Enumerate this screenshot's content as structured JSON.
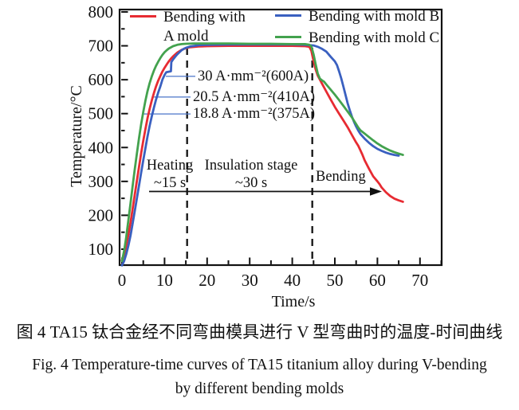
{
  "figure": {
    "caption_cn": "图 4  TA15 钛合金经不同弯曲模具进行 V 型弯曲时的温度-时间曲线",
    "caption_en_line1": "Fig. 4  Temperature-time curves of TA15 titanium alloy during V-bending",
    "caption_en_line2": "by different bending molds"
  },
  "chart_data": {
    "type": "line",
    "title": "",
    "xlabel": "Time/s",
    "ylabel": "Temperature/°C",
    "xlim": [
      0,
      75
    ],
    "ylim": [
      50,
      810
    ],
    "xticks": [
      0,
      10,
      20,
      30,
      40,
      50,
      60,
      70
    ],
    "yticks": [
      100,
      200,
      300,
      400,
      500,
      600,
      700,
      800
    ],
    "grid": false,
    "legend_position": "top-inside",
    "legend": [
      {
        "label_line1": "Bending with",
        "label_line2": "A mold",
        "color": "#e72b32"
      },
      {
        "label": "Bending with mold B",
        "color": "#3a60c0"
      },
      {
        "label": "Bending with mold C",
        "color": "#43a24e"
      }
    ],
    "dashed_lines_t": [
      15.3,
      44.7
    ],
    "leader_color": "#4a74c8",
    "stages": [
      {
        "line1": "Heating",
        "line2": "~15 s"
      },
      {
        "line1": "Insulation stage",
        "line2": "~30 s"
      },
      {
        "line1": "Bending"
      }
    ],
    "annotations": [
      {
        "label": "30 A·mm⁻²(600A)",
        "anchor_t": 10.3,
        "anchor_temp": 610
      },
      {
        "label": "20.5 A·mm⁻²(410A)",
        "anchor_t": 7.5,
        "anchor_temp": 549
      },
      {
        "label": "18.8 A·mm⁻²(375A)",
        "anchor_t": 4.9,
        "anchor_temp": 499
      }
    ],
    "series": [
      {
        "name": "Bending with A mold",
        "color": "#e72b32",
        "points": [
          [
            0,
            68
          ],
          [
            0.5,
            85
          ],
          [
            1,
            110
          ],
          [
            1.5,
            142
          ],
          [
            2,
            178
          ],
          [
            2.5,
            218
          ],
          [
            3,
            260
          ],
          [
            3.5,
            302
          ],
          [
            4,
            343
          ],
          [
            4.5,
            382
          ],
          [
            5,
            420
          ],
          [
            5.5,
            454
          ],
          [
            6,
            486
          ],
          [
            6.5,
            514
          ],
          [
            7,
            539
          ],
          [
            7.5,
            561
          ],
          [
            8,
            580
          ],
          [
            8.5,
            597
          ],
          [
            9,
            611
          ],
          [
            9.5,
            624
          ],
          [
            10,
            635
          ],
          [
            10.5,
            645
          ],
          [
            11,
            654
          ],
          [
            11.5,
            662
          ],
          [
            12,
            669
          ],
          [
            13,
            680
          ],
          [
            14,
            688
          ],
          [
            15,
            693
          ],
          [
            16,
            696
          ],
          [
            18,
            698
          ],
          [
            20,
            699
          ],
          [
            25,
            700
          ],
          [
            30,
            700
          ],
          [
            35,
            700
          ],
          [
            40,
            700
          ],
          [
            43,
            699
          ],
          [
            44,
            697
          ],
          [
            44.5,
            685
          ],
          [
            45,
            655
          ],
          [
            45.5,
            630
          ],
          [
            46,
            612
          ],
          [
            46.5,
            600
          ],
          [
            47,
            588
          ],
          [
            48,
            565
          ],
          [
            49,
            542
          ],
          [
            50,
            520
          ],
          [
            51,
            500
          ],
          [
            52,
            480
          ],
          [
            53,
            460
          ],
          [
            54,
            437
          ],
          [
            55,
            415
          ],
          [
            55.5,
            405
          ],
          [
            56,
            392
          ],
          [
            56.5,
            378
          ],
          [
            57,
            362
          ],
          [
            58,
            338
          ],
          [
            59,
            315
          ],
          [
            60,
            300
          ],
          [
            60.5,
            292
          ],
          [
            61,
            282
          ],
          [
            62,
            268
          ],
          [
            63,
            257
          ],
          [
            64,
            249
          ],
          [
            65,
            244
          ],
          [
            66,
            240
          ]
        ]
      },
      {
        "name": "Bending with mold B",
        "color": "#3a60c0",
        "points": [
          [
            0,
            52
          ],
          [
            0.5,
            65
          ],
          [
            1,
            85
          ],
          [
            1.5,
            110
          ],
          [
            2,
            140
          ],
          [
            2.5,
            175
          ],
          [
            3,
            212
          ],
          [
            3.5,
            250
          ],
          [
            4,
            288
          ],
          [
            4.5,
            325
          ],
          [
            5,
            362
          ],
          [
            5.5,
            398
          ],
          [
            6,
            432
          ],
          [
            6.5,
            464
          ],
          [
            7,
            492
          ],
          [
            7.5,
            518
          ],
          [
            8,
            541
          ],
          [
            8.5,
            562
          ],
          [
            9,
            580
          ],
          [
            9.5,
            600
          ],
          [
            10,
            614
          ],
          [
            10.4,
            622
          ],
          [
            11.5,
            625
          ],
          [
            11.6,
            652
          ],
          [
            12,
            660
          ],
          [
            12.5,
            668
          ],
          [
            13,
            675
          ],
          [
            13.5,
            681
          ],
          [
            14,
            687
          ],
          [
            14.5,
            691
          ],
          [
            15,
            694
          ],
          [
            16,
            698
          ],
          [
            17,
            700
          ],
          [
            18,
            702
          ],
          [
            20,
            703
          ],
          [
            25,
            704
          ],
          [
            30,
            704
          ],
          [
            35,
            704
          ],
          [
            40,
            704
          ],
          [
            43,
            703
          ],
          [
            45,
            701
          ],
          [
            46,
            697
          ],
          [
            47,
            691
          ],
          [
            48,
            683
          ],
          [
            49,
            668
          ],
          [
            50,
            654
          ],
          [
            50.5,
            643
          ],
          [
            51,
            625
          ],
          [
            51.5,
            604
          ],
          [
            52,
            580
          ],
          [
            52.5,
            556
          ],
          [
            53,
            531
          ],
          [
            53.5,
            510
          ],
          [
            54,
            491
          ],
          [
            54.5,
            476
          ],
          [
            55,
            462
          ],
          [
            55.5,
            450
          ],
          [
            56,
            440
          ],
          [
            57,
            426
          ],
          [
            58,
            414
          ],
          [
            59,
            404
          ],
          [
            60,
            396
          ],
          [
            61,
            390
          ],
          [
            62,
            385
          ],
          [
            63,
            381
          ],
          [
            64,
            378
          ],
          [
            65,
            376
          ]
        ]
      },
      {
        "name": "Bending with mold C",
        "color": "#43a24e",
        "points": [
          [
            0,
            65
          ],
          [
            0.5,
            95
          ],
          [
            1,
            135
          ],
          [
            1.5,
            185
          ],
          [
            2,
            235
          ],
          [
            2.5,
            285
          ],
          [
            3,
            335
          ],
          [
            3.5,
            382
          ],
          [
            4,
            428
          ],
          [
            4.5,
            468
          ],
          [
            5,
            505
          ],
          [
            5.5,
            538
          ],
          [
            6,
            566
          ],
          [
            6.5,
            590
          ],
          [
            7,
            610
          ],
          [
            7.5,
            627
          ],
          [
            8,
            641
          ],
          [
            8.5,
            653
          ],
          [
            9,
            664
          ],
          [
            9.5,
            673
          ],
          [
            10,
            681
          ],
          [
            10.5,
            687
          ],
          [
            11,
            692
          ],
          [
            12,
            699
          ],
          [
            13,
            703
          ],
          [
            14,
            705
          ],
          [
            15,
            706
          ],
          [
            17,
            707
          ],
          [
            20,
            707
          ],
          [
            25,
            707
          ],
          [
            30,
            706
          ],
          [
            35,
            706
          ],
          [
            40,
            705
          ],
          [
            43,
            705
          ],
          [
            44,
            703
          ],
          [
            44.5,
            698
          ],
          [
            45,
            675
          ],
          [
            45.5,
            645
          ],
          [
            46,
            618
          ],
          [
            46.5,
            603
          ],
          [
            47,
            598
          ],
          [
            47.5,
            594
          ],
          [
            48,
            586
          ],
          [
            49,
            571
          ],
          [
            50,
            556
          ],
          [
            51,
            540
          ],
          [
            52,
            523
          ],
          [
            53,
            506
          ],
          [
            54,
            489
          ],
          [
            54.5,
            479
          ],
          [
            55,
            469
          ],
          [
            55.5,
            459
          ],
          [
            56,
            451
          ],
          [
            57,
            441
          ],
          [
            58,
            431
          ],
          [
            59,
            421
          ],
          [
            60,
            412
          ],
          [
            61,
            404
          ],
          [
            62,
            397
          ],
          [
            63,
            391
          ],
          [
            64,
            386
          ],
          [
            65,
            382
          ],
          [
            66,
            378
          ]
        ]
      }
    ]
  }
}
